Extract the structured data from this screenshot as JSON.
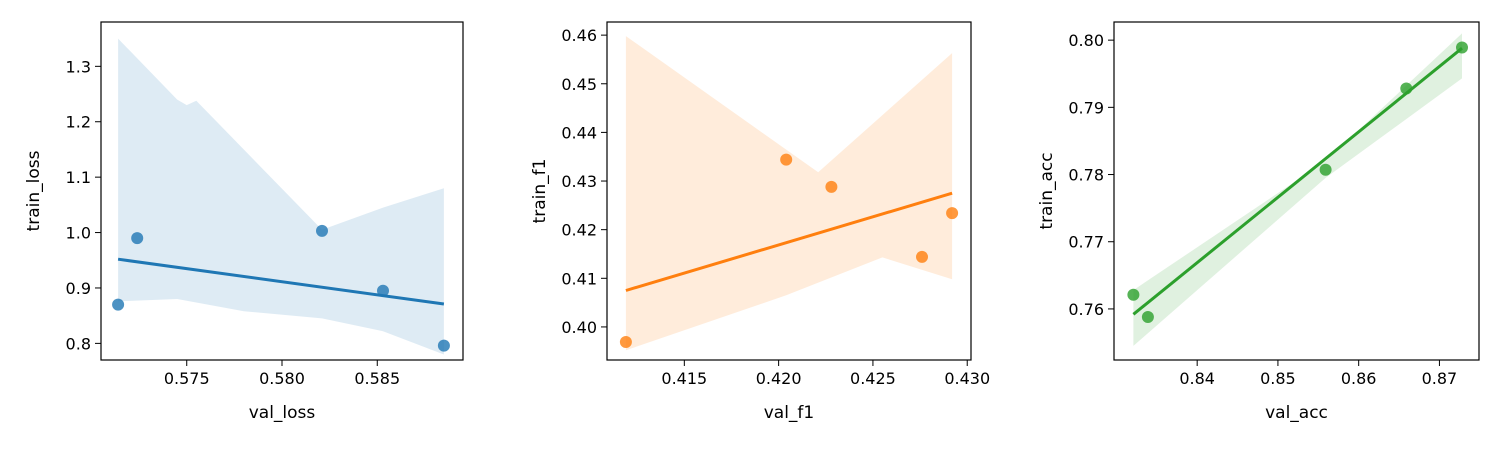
{
  "chart_data": [
    {
      "type": "scatter",
      "xlabel": "val_loss",
      "ylabel": "train_loss",
      "color": "#1f77b4",
      "xlim": [
        0.5705,
        0.5895
      ],
      "ylim": [
        0.77,
        1.38
      ],
      "xticks": [
        0.575,
        0.58,
        0.585
      ],
      "xtick_labels": [
        "0.575",
        "0.580",
        "0.585"
      ],
      "yticks": [
        0.8,
        0.9,
        1.0,
        1.1,
        1.2,
        1.3
      ],
      "ytick_labels": [
        "0.8",
        "0.9",
        "1.0",
        "1.1",
        "1.2",
        "1.3"
      ],
      "x": [
        0.5714,
        0.5724,
        0.5821,
        0.5853,
        0.5885
      ],
      "y": [
        0.87,
        0.99,
        1.003,
        0.895,
        0.796
      ],
      "regression_line": [
        [
          0.5714,
          0.952
        ],
        [
          0.5885,
          0.871
        ]
      ],
      "confidence_band": {
        "upper": [
          [
            0.5714,
            1.35
          ],
          [
            0.5745,
            1.24
          ],
          [
            0.575,
            1.23
          ],
          [
            0.5755,
            1.238
          ],
          [
            0.5821,
            1.005
          ],
          [
            0.5853,
            1.045
          ],
          [
            0.5885,
            1.08
          ]
        ],
        "lower": [
          [
            0.5885,
            0.78
          ],
          [
            0.5853,
            0.822
          ],
          [
            0.5821,
            0.845
          ],
          [
            0.578,
            0.858
          ],
          [
            0.5745,
            0.88
          ],
          [
            0.5714,
            0.876
          ]
        ]
      }
    },
    {
      "type": "scatter",
      "xlabel": "val_f1",
      "ylabel": "train_f1",
      "color": "#ff7f0e",
      "xlim": [
        0.4109,
        0.4302
      ],
      "ylim": [
        0.3932,
        0.4627
      ],
      "xticks": [
        0.415,
        0.42,
        0.425,
        0.43
      ],
      "xtick_labels": [
        "0.415",
        "0.420",
        "0.425",
        "0.430"
      ],
      "yticks": [
        0.4,
        0.41,
        0.42,
        0.43,
        0.44,
        0.45,
        0.46
      ],
      "ytick_labels": [
        "0.40",
        "0.41",
        "0.42",
        "0.43",
        "0.44",
        "0.45",
        "0.46"
      ],
      "x": [
        0.4119,
        0.4204,
        0.4228,
        0.4276,
        0.4292
      ],
      "y": [
        0.3969,
        0.4344,
        0.4288,
        0.4144,
        0.4234
      ],
      "regression_line": [
        [
          0.4119,
          0.4075
        ],
        [
          0.4292,
          0.4275
        ]
      ],
      "confidence_band": {
        "upper": [
          [
            0.4119,
            0.4598
          ],
          [
            0.4221,
            0.4318
          ],
          [
            0.4292,
            0.4563
          ]
        ],
        "lower": [
          [
            0.4292,
            0.4098
          ],
          [
            0.4255,
            0.4143
          ],
          [
            0.4204,
            0.4065
          ],
          [
            0.4119,
            0.3952
          ]
        ]
      }
    },
    {
      "type": "scatter",
      "xlabel": "val_acc",
      "ylabel": "train_acc",
      "color": "#2ca02c",
      "xlim": [
        0.8297,
        0.8749
      ],
      "ylim": [
        0.7524,
        0.8027
      ],
      "xticks": [
        0.84,
        0.85,
        0.86,
        0.87
      ],
      "xtick_labels": [
        "0.84",
        "0.85",
        "0.86",
        "0.87"
      ],
      "yticks": [
        0.76,
        0.77,
        0.78,
        0.79,
        0.8
      ],
      "ytick_labels": [
        "0.76",
        "0.77",
        "0.78",
        "0.79",
        "0.80"
      ],
      "x": [
        0.8321,
        0.8339,
        0.8559,
        0.8659,
        0.8728
      ],
      "y": [
        0.7621,
        0.7588,
        0.7807,
        0.7928,
        0.7989
      ],
      "regression_line": [
        [
          0.8321,
          0.7592
        ],
        [
          0.8728,
          0.7988
        ]
      ],
      "confidence_band": {
        "upper": [
          [
            0.8321,
            0.7628
          ],
          [
            0.8559,
            0.782
          ],
          [
            0.8728,
            0.801
          ]
        ],
        "lower": [
          [
            0.8728,
            0.7943
          ],
          [
            0.8559,
            0.7795
          ],
          [
            0.8321,
            0.7545
          ]
        ]
      }
    }
  ]
}
